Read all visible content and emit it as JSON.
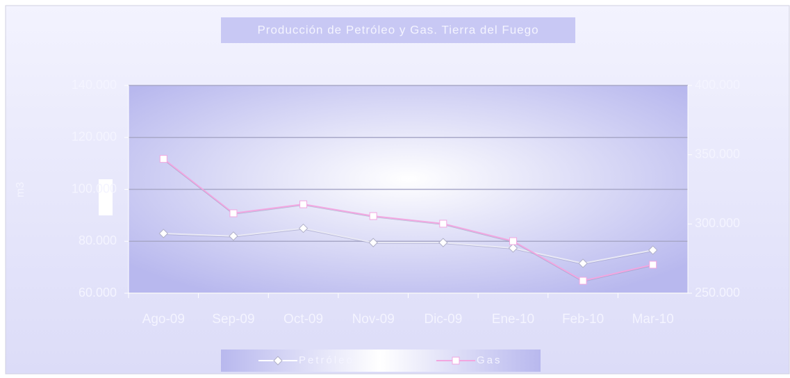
{
  "chart_data": {
    "type": "line",
    "title": "Producción de Petróleo y Gas. Tierra del Fuego",
    "y_label": "m3",
    "categories": [
      "Ago-09",
      "Sep-09",
      "Oct-09",
      "Nov-09",
      "Dic-09",
      "Ene-10",
      "Feb-10",
      "Mar-10"
    ],
    "series": [
      {
        "name": "Petróleo",
        "color": "#e8e8f4",
        "marker": "diamond",
        "values": [
          83000,
          82000,
          85000,
          79500,
          79500,
          77400,
          71500,
          76600
        ]
      },
      {
        "name": "Gas",
        "color": "#f2a6e0",
        "marker": "square",
        "axis": "y2",
        "values": [
          347000,
          307700,
          314200,
          305700,
          300200,
          287600,
          259000,
          270600
        ]
      }
    ],
    "ylim": [
      60000,
      140000
    ],
    "yticks": [
      {
        "value": 60000,
        "label": "60.000"
      },
      {
        "value": 80000,
        "label": "80.000"
      },
      {
        "value": 100000,
        "label": "100.000"
      },
      {
        "value": 120000,
        "label": "120.000"
      },
      {
        "value": 140000,
        "label": "140.000"
      }
    ],
    "y2lim": [
      250000,
      400000
    ],
    "y2ticks": [
      {
        "value": 250000,
        "label": "250.000"
      },
      {
        "value": 300000,
        "label": "300.000"
      },
      {
        "value": 350000,
        "label": "350.000"
      },
      {
        "value": 400000,
        "label": "400.000"
      }
    ],
    "grid": true,
    "legend": "bottom"
  }
}
